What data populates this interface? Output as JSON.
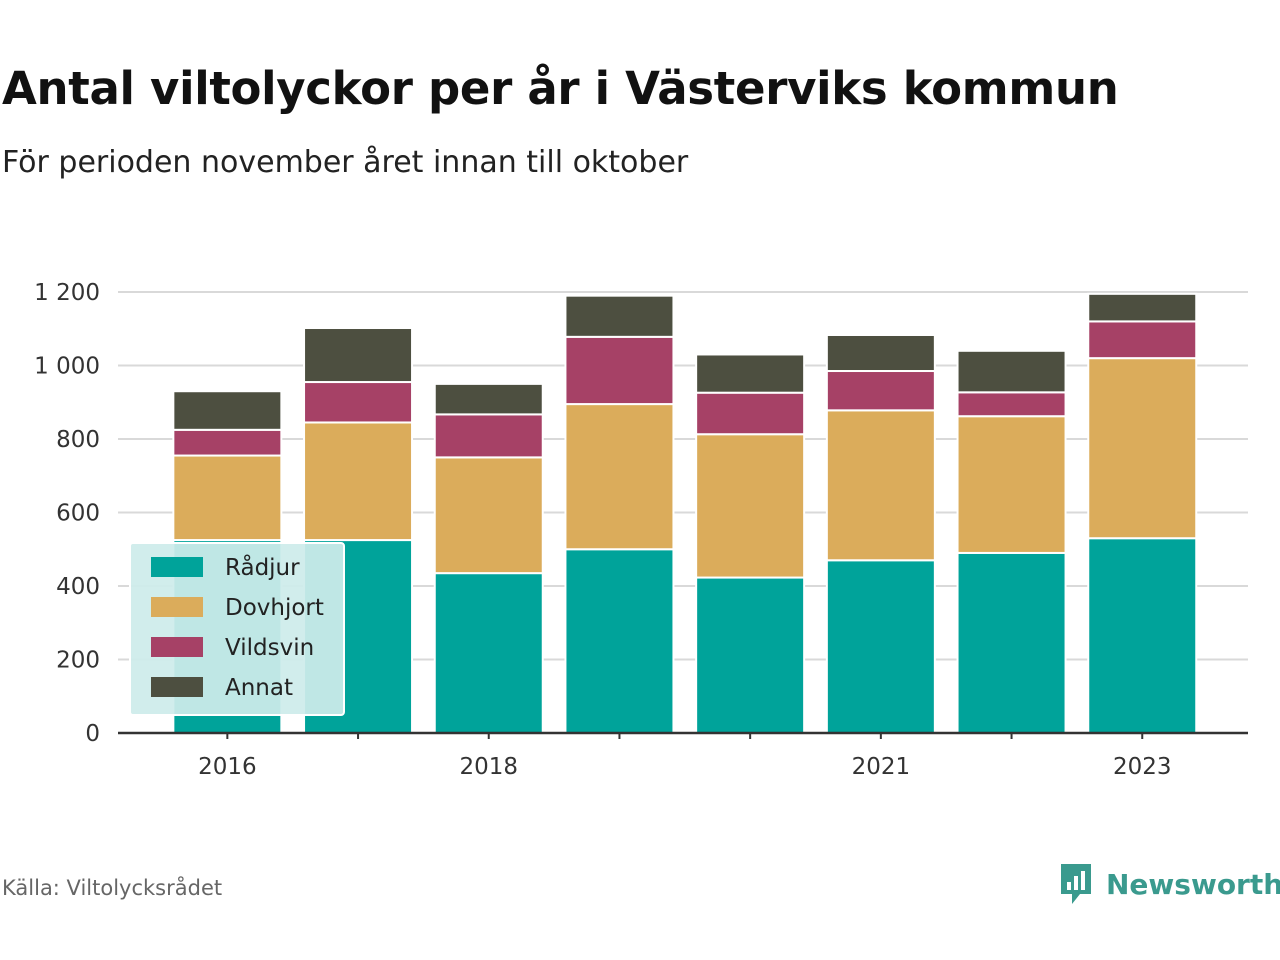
{
  "title": "Antal viltolyckor per år i Västerviks kommun",
  "subtitle": "För perioden november året innan till oktober",
  "source": "Källa: Viltolycksrådet",
  "brand": "Newsworthy",
  "colors": {
    "Rådjur": "#00a39a",
    "Dovhjort": "#dbac5b",
    "Vildsvin": "#a64166",
    "Annat": "#4d4f40",
    "grid": "#d9d9d9",
    "axis": "#333333",
    "legend_bg": "#cdeceb",
    "brand": "#3a9a8e"
  },
  "chart_data": {
    "type": "bar",
    "stacked": true,
    "categories": [
      "2016",
      "2017",
      "2018",
      "2019",
      "2020",
      "2021",
      "2022",
      "2023"
    ],
    "x_tick_labels": [
      "2016",
      "",
      "2018",
      "",
      "",
      "2021",
      "",
      "2023"
    ],
    "y_ticks": [
      "0",
      "200",
      "400",
      "600",
      "800",
      "1 000",
      "1 200"
    ],
    "ylim": [
      0,
      1200
    ],
    "grid": true,
    "legend_position": "bottom-left",
    "series": [
      {
        "name": "Rådjur",
        "values": [
          525,
          525,
          435,
          500,
          423,
          470,
          490,
          530
        ]
      },
      {
        "name": "Dovhjort",
        "values": [
          230,
          320,
          315,
          395,
          390,
          408,
          372,
          490
        ]
      },
      {
        "name": "Vildsvin",
        "values": [
          70,
          110,
          117,
          183,
          113,
          107,
          65,
          100
        ]
      },
      {
        "name": "Annat",
        "values": [
          105,
          147,
          83,
          112,
          104,
          98,
          113,
          75
        ]
      }
    ]
  }
}
